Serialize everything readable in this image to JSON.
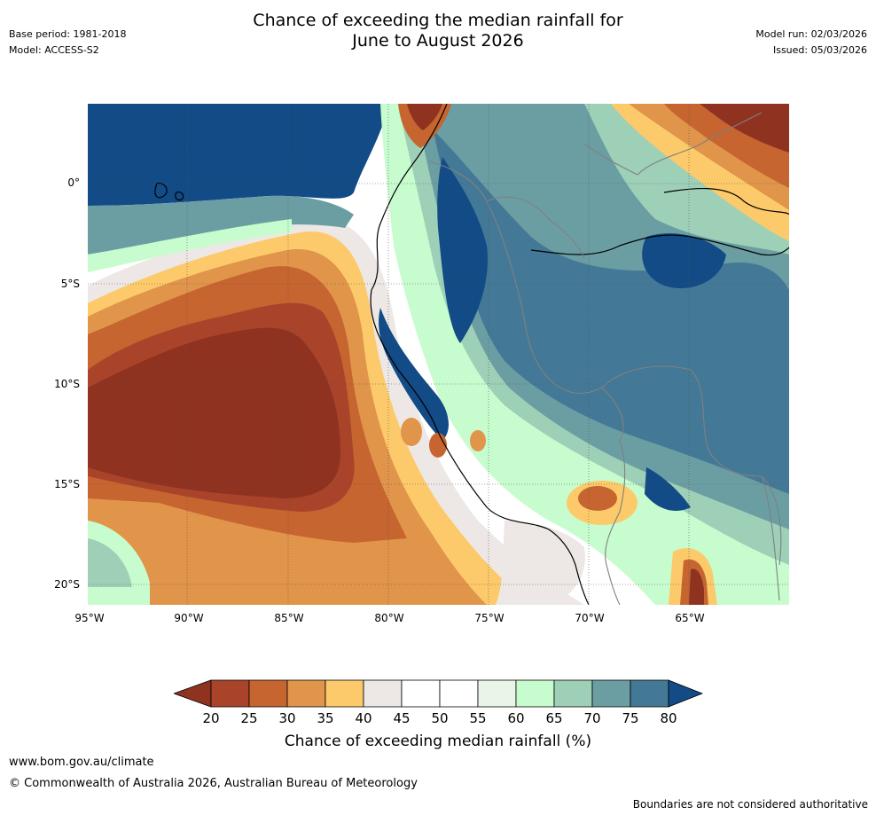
{
  "header": {
    "title_line1": "Chance of exceeding the median rainfall for",
    "title_line2": "June to August 2026",
    "base_period": "Base period: 1981-2018",
    "model": "Model: ACCESS-S2",
    "model_run": "Model run: 02/03/2026",
    "issued": "Issued: 05/03/2026"
  },
  "map": {
    "lat_labels": [
      "0°",
      "5°S",
      "10°S",
      "15°S",
      "20°S"
    ],
    "lon_labels": [
      "95°W",
      "90°W",
      "85°W",
      "80°W",
      "75°W",
      "70°W",
      "65°W"
    ],
    "extent": {
      "lon_min": -95,
      "lon_max": -60,
      "lat_min": -21,
      "lat_max": 4
    }
  },
  "colorbar": {
    "ticks": [
      "20",
      "25",
      "30",
      "35",
      "40",
      "45",
      "50",
      "55",
      "60",
      "65",
      "70",
      "75",
      "80"
    ],
    "colors": {
      "below20": "#8f3320",
      "c20_25": "#a9442a",
      "c25_30": "#c66530",
      "c30_35": "#e0954a",
      "c35_40": "#fcca6a",
      "c40_45": "#ede8e5",
      "c45_50": "#ffffff",
      "c50_55": "#ffffff",
      "c55_60": "#e8f5e8",
      "c60_65": "#c7fcce",
      "c65_70": "#9ed0b7",
      "c70_75": "#6b9ea3",
      "c75_80": "#437996",
      "above80": "#124b86"
    },
    "label": "Chance of exceeding median rainfall (%)"
  },
  "footer": {
    "site": "www.bom.gov.au/climate",
    "copyright": "© Commonwealth of Australia 2026, Australian Bureau of Meteorology",
    "disclaimer": "Boundaries are not considered authoritative"
  }
}
